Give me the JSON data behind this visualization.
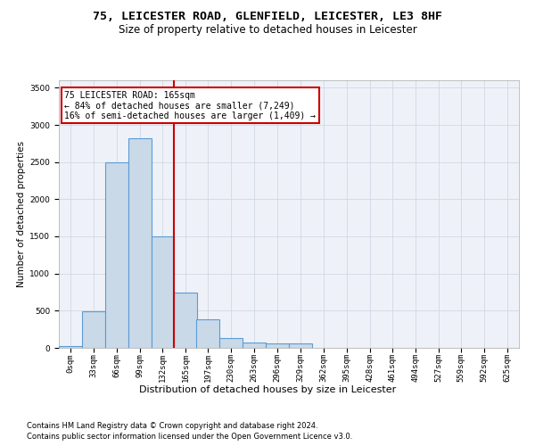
{
  "title1": "75, LEICESTER ROAD, GLENFIELD, LEICESTER, LE3 8HF",
  "title2": "Size of property relative to detached houses in Leicester",
  "xlabel": "Distribution of detached houses by size in Leicester",
  "ylabel": "Number of detached properties",
  "bar_color": "#c9d9e8",
  "bar_edge_color": "#5b9bd5",
  "bar_edge_width": 0.8,
  "bin_width": 33,
  "bin_starts": [
    0,
    33,
    66,
    99,
    132,
    165,
    197,
    230,
    263,
    296,
    329,
    362,
    395,
    428,
    461,
    494,
    527,
    559,
    592,
    625
  ],
  "bar_heights": [
    30,
    490,
    2500,
    2820,
    1500,
    750,
    380,
    135,
    75,
    65,
    60,
    0,
    0,
    0,
    0,
    0,
    0,
    0,
    0,
    0
  ],
  "ylim": [
    0,
    3600
  ],
  "yticks": [
    0,
    500,
    1000,
    1500,
    2000,
    2500,
    3000,
    3500
  ],
  "property_line_x": 165,
  "property_line_color": "#cc0000",
  "annotation_text": "75 LEICESTER ROAD: 165sqm\n← 84% of detached houses are smaller (7,249)\n16% of semi-detached houses are larger (1,409) →",
  "annotation_box_color": "#cc0000",
  "grid_color": "#d0d8e4",
  "bg_color": "#eef2f8",
  "footnote1": "Contains HM Land Registry data © Crown copyright and database right 2024.",
  "footnote2": "Contains public sector information licensed under the Open Government Licence v3.0.",
  "title1_fontsize": 9.5,
  "title2_fontsize": 8.5,
  "xlabel_fontsize": 8,
  "ylabel_fontsize": 7.5,
  "tick_fontsize": 6.5,
  "annotation_fontsize": 7,
  "footnote_fontsize": 6
}
